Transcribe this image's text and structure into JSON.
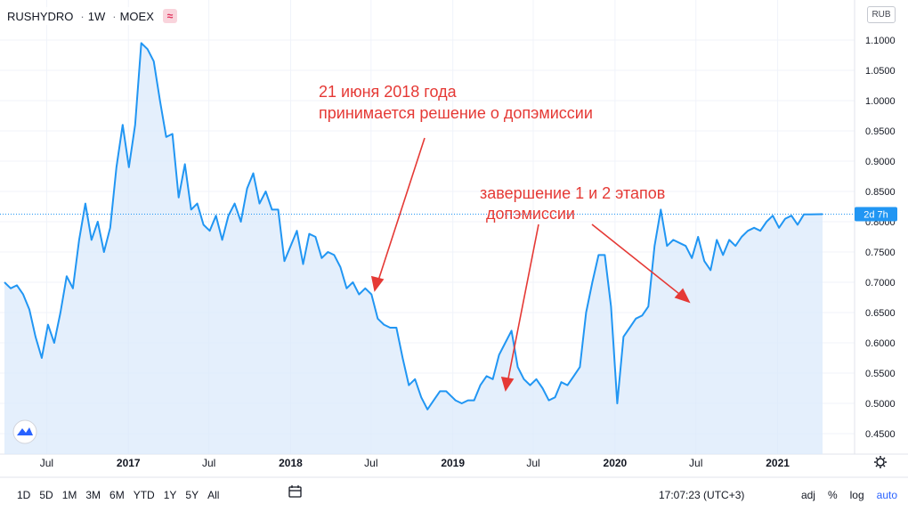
{
  "header": {
    "symbol": "RUSHYDRO",
    "interval": "1W",
    "exchange": "MOEX",
    "badge_icon": "compare-icon"
  },
  "currency": "RUB",
  "price_label": "2d 7h",
  "y_axis_ticks": [
    "1.1000",
    "1.0500",
    "1.0000",
    "0.9500",
    "0.9000",
    "0.8500",
    "0.8000",
    "0.7500",
    "0.7000",
    "0.6500",
    "0.6000",
    "0.5500",
    "0.5000",
    "0.4500"
  ],
  "x_axis_ticks": [
    "Jul",
    "2017",
    "Jul",
    "2018",
    "Jul",
    "2019",
    "Jul",
    "2020",
    "Jul",
    "2021"
  ],
  "annotations": {
    "note1_line1": "21 июня 2018 года",
    "note1_line2": "принимается решение о допэмиссии",
    "note2_line1": "завершение 1 и 2 этапов",
    "note2_line2": "допэмиссии"
  },
  "toolbar": {
    "ranges": [
      "1D",
      "5D",
      "1M",
      "3M",
      "6M",
      "YTD",
      "1Y",
      "5Y",
      "All"
    ],
    "time": "17:07:23 (UTC+3)",
    "adj": "adj",
    "percent": "%",
    "log": "log",
    "auto": "auto"
  },
  "colors": {
    "line": "#2196f3",
    "area": "#dbeafb",
    "annotation": "#e53935",
    "price_label_bg": "#2196f3"
  },
  "chart_data": {
    "type": "area",
    "y_range": [
      0.45,
      1.15
    ],
    "x_range": [
      "2016-03-28",
      "2021-04-12"
    ],
    "current_value": 0.8125,
    "series": [
      {
        "values": [
          [
            "2016-03-28",
            0.7
          ],
          [
            "2016-04-11",
            0.69
          ],
          [
            "2016-04-25",
            0.695
          ],
          [
            "2016-05-09",
            0.68
          ],
          [
            "2016-05-23",
            0.655
          ],
          [
            "2016-06-06",
            0.61
          ],
          [
            "2016-06-20",
            0.575
          ],
          [
            "2016-07-04",
            0.63
          ],
          [
            "2016-07-18",
            0.6
          ],
          [
            "2016-08-01",
            0.65
          ],
          [
            "2016-08-15",
            0.71
          ],
          [
            "2016-08-29",
            0.69
          ],
          [
            "2016-09-12",
            0.77
          ],
          [
            "2016-09-26",
            0.83
          ],
          [
            "2016-10-10",
            0.77
          ],
          [
            "2016-10-24",
            0.8
          ],
          [
            "2016-11-07",
            0.75
          ],
          [
            "2016-11-21",
            0.79
          ],
          [
            "2016-12-05",
            0.89
          ],
          [
            "2016-12-19",
            0.96
          ],
          [
            "2017-01-02",
            0.89
          ],
          [
            "2017-01-16",
            0.96
          ],
          [
            "2017-01-30",
            1.095
          ],
          [
            "2017-02-13",
            1.085
          ],
          [
            "2017-02-27",
            1.065
          ],
          [
            "2017-03-13",
            1.0
          ],
          [
            "2017-03-27",
            0.94
          ],
          [
            "2017-04-10",
            0.945
          ],
          [
            "2017-04-24",
            0.84
          ],
          [
            "2017-05-08",
            0.895
          ],
          [
            "2017-05-22",
            0.82
          ],
          [
            "2017-06-05",
            0.83
          ],
          [
            "2017-06-19",
            0.795
          ],
          [
            "2017-07-03",
            0.785
          ],
          [
            "2017-07-17",
            0.81
          ],
          [
            "2017-07-31",
            0.77
          ],
          [
            "2017-08-14",
            0.81
          ],
          [
            "2017-08-28",
            0.83
          ],
          [
            "2017-09-11",
            0.8
          ],
          [
            "2017-09-25",
            0.855
          ],
          [
            "2017-10-09",
            0.88
          ],
          [
            "2017-10-23",
            0.83
          ],
          [
            "2017-11-06",
            0.85
          ],
          [
            "2017-11-20",
            0.82
          ],
          [
            "2017-12-04",
            0.82
          ],
          [
            "2017-12-18",
            0.735
          ],
          [
            "2018-01-01",
            0.76
          ],
          [
            "2018-01-15",
            0.785
          ],
          [
            "2018-01-29",
            0.73
          ],
          [
            "2018-02-12",
            0.78
          ],
          [
            "2018-02-26",
            0.775
          ],
          [
            "2018-03-12",
            0.74
          ],
          [
            "2018-03-26",
            0.75
          ],
          [
            "2018-04-09",
            0.745
          ],
          [
            "2018-04-23",
            0.725
          ],
          [
            "2018-05-07",
            0.69
          ],
          [
            "2018-05-21",
            0.7
          ],
          [
            "2018-06-04",
            0.68
          ],
          [
            "2018-06-18",
            0.69
          ],
          [
            "2018-07-02",
            0.68
          ],
          [
            "2018-07-16",
            0.64
          ],
          [
            "2018-07-30",
            0.63
          ],
          [
            "2018-08-13",
            0.625
          ],
          [
            "2018-08-27",
            0.625
          ],
          [
            "2018-09-10",
            0.575
          ],
          [
            "2018-09-24",
            0.53
          ],
          [
            "2018-10-08",
            0.54
          ],
          [
            "2018-10-22",
            0.51
          ],
          [
            "2018-11-05",
            0.49
          ],
          [
            "2018-11-19",
            0.505
          ],
          [
            "2018-12-03",
            0.52
          ],
          [
            "2018-12-17",
            0.52
          ],
          [
            "2019-01-07",
            0.505
          ],
          [
            "2019-01-21",
            0.5
          ],
          [
            "2019-02-04",
            0.505
          ],
          [
            "2019-02-18",
            0.505
          ],
          [
            "2019-03-04",
            0.53
          ],
          [
            "2019-03-18",
            0.545
          ],
          [
            "2019-04-01",
            0.54
          ],
          [
            "2019-04-15",
            0.58
          ],
          [
            "2019-04-29",
            0.6
          ],
          [
            "2019-05-13",
            0.62
          ],
          [
            "2019-05-27",
            0.56
          ],
          [
            "2019-06-10",
            0.54
          ],
          [
            "2019-06-24",
            0.53
          ],
          [
            "2019-07-08",
            0.54
          ],
          [
            "2019-07-22",
            0.525
          ],
          [
            "2019-08-05",
            0.505
          ],
          [
            "2019-08-19",
            0.51
          ],
          [
            "2019-09-02",
            0.535
          ],
          [
            "2019-09-16",
            0.53
          ],
          [
            "2019-09-30",
            0.545
          ],
          [
            "2019-10-14",
            0.56
          ],
          [
            "2019-10-28",
            0.65
          ],
          [
            "2019-11-11",
            0.7
          ],
          [
            "2019-11-25",
            0.745
          ],
          [
            "2019-12-09",
            0.745
          ],
          [
            "2019-12-23",
            0.66
          ],
          [
            "2020-01-06",
            0.5
          ],
          [
            "2020-01-20",
            0.61
          ],
          [
            "2020-02-03",
            0.625
          ],
          [
            "2020-02-17",
            0.64
          ],
          [
            "2020-03-02",
            0.645
          ],
          [
            "2020-03-16",
            0.66
          ],
          [
            "2020-03-30",
            0.76
          ],
          [
            "2020-04-13",
            0.82
          ],
          [
            "2020-04-27",
            0.76
          ],
          [
            "2020-05-11",
            0.77
          ],
          [
            "2020-05-25",
            0.765
          ],
          [
            "2020-06-08",
            0.76
          ],
          [
            "2020-06-22",
            0.74
          ],
          [
            "2020-07-06",
            0.775
          ],
          [
            "2020-07-20",
            0.735
          ],
          [
            "2020-08-03",
            0.72
          ],
          [
            "2020-08-17",
            0.77
          ],
          [
            "2020-08-31",
            0.745
          ],
          [
            "2020-09-14",
            0.77
          ],
          [
            "2020-09-28",
            0.76
          ],
          [
            "2020-10-12",
            0.775
          ],
          [
            "2020-10-26",
            0.785
          ],
          [
            "2020-11-09",
            0.79
          ],
          [
            "2020-11-23",
            0.785
          ],
          [
            "2020-12-07",
            0.8
          ],
          [
            "2020-12-21",
            0.81
          ],
          [
            "2021-01-04",
            0.79
          ],
          [
            "2021-01-18",
            0.805
          ],
          [
            "2021-02-01",
            0.81
          ],
          [
            "2021-02-15",
            0.795
          ],
          [
            "2021-03-01",
            0.812
          ],
          [
            "2021-03-15",
            0.812
          ],
          [
            "2021-04-12",
            0.8125
          ]
        ]
      }
    ]
  }
}
